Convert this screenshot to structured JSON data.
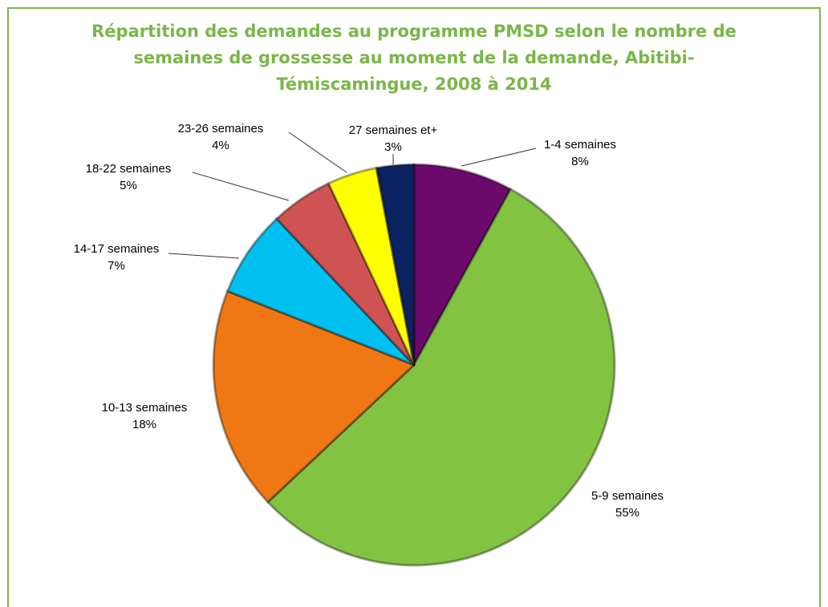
{
  "chart_data": {
    "type": "pie",
    "title": [
      "Répartition des demandes au programme PMSD selon le nombre de",
      "semaines de grossesse au moment de la demande, Abitibi-",
      "Témiscamingue, 2008 à 2014"
    ],
    "categories": [
      "1-4 semaines",
      "5-9 semaines",
      "10-13 semaines",
      "14-17 semaines",
      "18-22 semaines",
      "23-26 semaines",
      "27 semaines et+"
    ],
    "values": [
      8,
      55,
      18,
      7,
      5,
      4,
      3
    ],
    "value_labels": [
      "8%",
      "55%",
      "18%",
      "7%",
      "5%",
      "4%",
      "3%"
    ],
    "colors": [
      "#6b0a6b",
      "#82c341",
      "#f07814",
      "#00c0ef",
      "#d05353",
      "#ffff00",
      "#0a2260"
    ]
  }
}
